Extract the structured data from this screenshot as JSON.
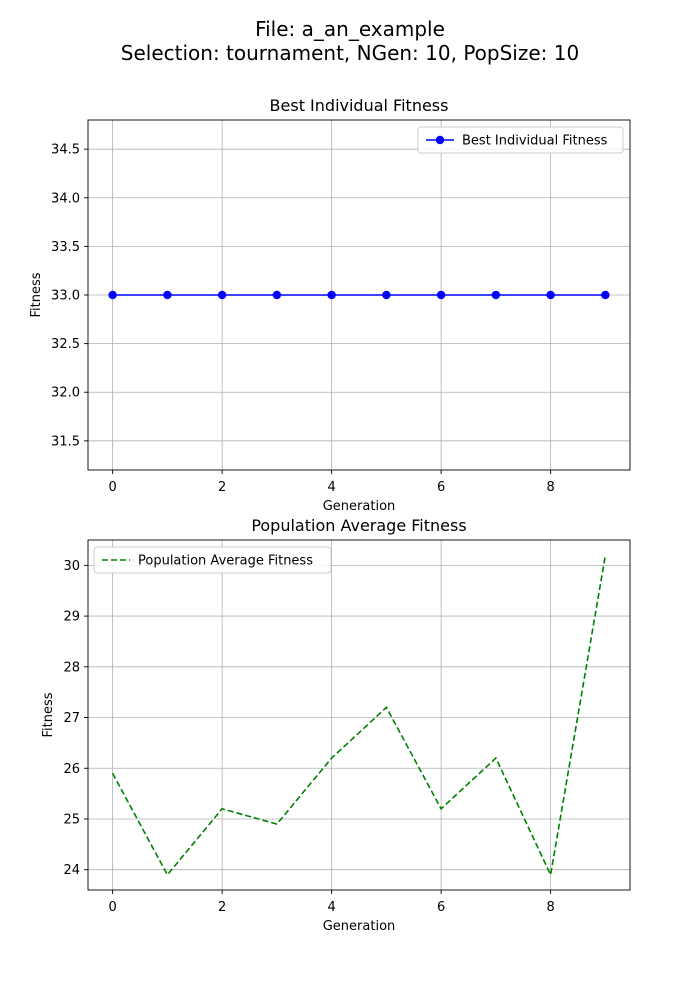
{
  "figure": {
    "title_line1": "File: a_an_example",
    "title_line2": "Selection: tournament, NGen: 10, PopSize: 10"
  },
  "chart_data": [
    {
      "type": "line",
      "title": "Best Individual Fitness",
      "xlabel": "Generation",
      "ylabel": "Fitness",
      "x": [
        0,
        1,
        2,
        3,
        4,
        5,
        6,
        7,
        8,
        9
      ],
      "series": [
        {
          "name": "Best Individual Fitness",
          "values": [
            33,
            33,
            33,
            33,
            33,
            33,
            33,
            33,
            33,
            33
          ],
          "color": "#0000ff",
          "line_style": "solid",
          "marker": "circle"
        }
      ],
      "xlim": [
        -0.45,
        9.45
      ],
      "ylim": [
        31.2,
        34.8
      ],
      "xticks": [
        0,
        2,
        4,
        6,
        8
      ],
      "yticks": [
        31.5,
        32.0,
        32.5,
        33.0,
        33.5,
        34.0,
        34.5
      ],
      "ytick_labels": [
        "31.5",
        "32.0",
        "32.5",
        "33.0",
        "33.5",
        "34.0",
        "34.5"
      ],
      "grid": true,
      "legend_position": "upper right"
    },
    {
      "type": "line",
      "title": "Population Average Fitness",
      "xlabel": "Generation",
      "ylabel": "Fitness",
      "x": [
        0,
        1,
        2,
        3,
        4,
        5,
        6,
        7,
        8,
        9
      ],
      "series": [
        {
          "name": "Population Average Fitness",
          "values": [
            25.9,
            23.9,
            25.2,
            24.9,
            26.2,
            27.2,
            25.2,
            26.2,
            23.9,
            30.2
          ],
          "color": "#008000",
          "line_style": "dashed",
          "marker": "none"
        }
      ],
      "xlim": [
        -0.45,
        9.45
      ],
      "ylim": [
        23.6,
        30.5
      ],
      "xticks": [
        0,
        2,
        4,
        6,
        8
      ],
      "yticks": [
        24,
        25,
        26,
        27,
        28,
        29,
        30
      ],
      "ytick_labels": [
        "24",
        "25",
        "26",
        "27",
        "28",
        "29",
        "30"
      ],
      "grid": true,
      "legend_position": "upper left"
    }
  ]
}
